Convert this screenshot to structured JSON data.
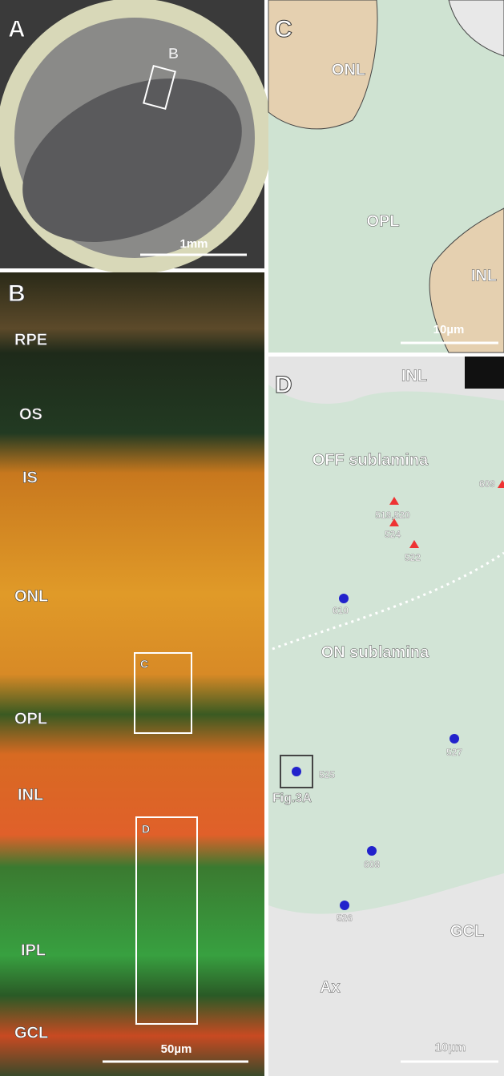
{
  "panels": [
    {
      "letter": "A",
      "labels": [
        "B"
      ],
      "scale_bar": "1mm"
    },
    {
      "letter": "B",
      "labels": [
        "RPE",
        "OS",
        "IS",
        "ONL",
        "OPL",
        "INL",
        "IPL",
        "GCL",
        "C",
        "D"
      ],
      "scale_bar": "50µm"
    },
    {
      "letter": "C",
      "labels": [
        "ONL",
        "OPL",
        "INL"
      ],
      "scale_bar": "10µm"
    },
    {
      "letter": "D",
      "labels": [
        "INL",
        "OFF sublamina",
        "ON sublamina",
        "GCL",
        "Ax",
        "Fig.3A"
      ],
      "off_markers": [
        "609",
        "519,520",
        "524",
        "522"
      ],
      "on_markers": [
        "610",
        "527",
        "525",
        "608",
        "526"
      ],
      "scale_bar": "10µm"
    }
  ]
}
